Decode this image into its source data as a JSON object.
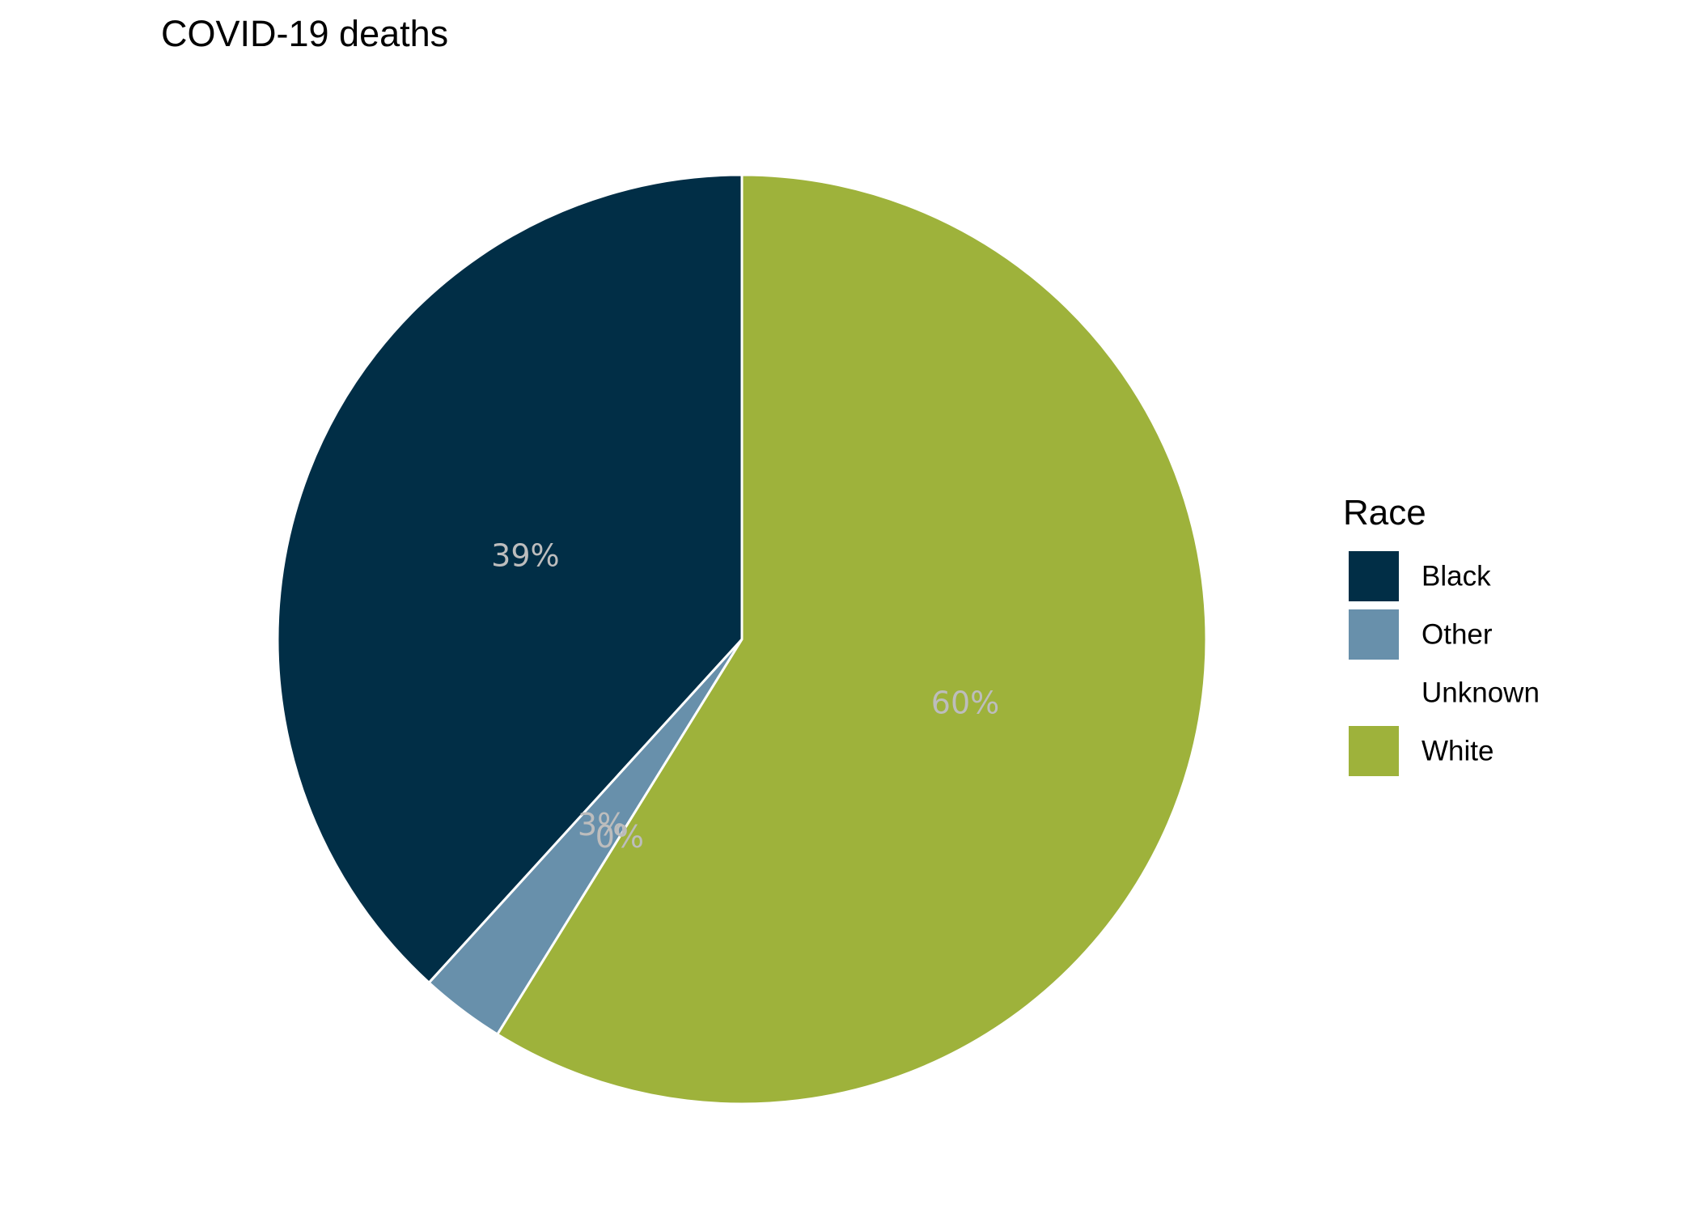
{
  "chart_data": {
    "type": "pie",
    "title": "COVID-19 deaths",
    "legend": {
      "title": "Race",
      "position": "right"
    },
    "slices": [
      {
        "name": "Black",
        "value": 39,
        "label": "39%",
        "color": "#012e46"
      },
      {
        "name": "Other",
        "value": 3,
        "label": "3%",
        "color": "#6890ab"
      },
      {
        "name": "Unknown",
        "value": 0,
        "label": "0%",
        "color": "#ffffff"
      },
      {
        "name": "White",
        "value": 60,
        "label": "60%",
        "color": "#9eb23b"
      }
    ],
    "slice_order": [
      "Black",
      "Other",
      "Unknown",
      "White"
    ],
    "direction": "counterclockwise from top"
  }
}
